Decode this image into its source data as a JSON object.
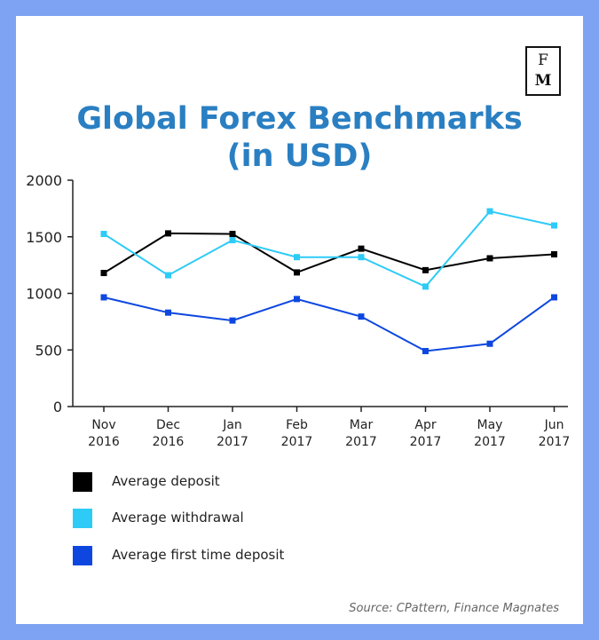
{
  "logo": {
    "line1": "F",
    "line2": "M"
  },
  "source": "Source: CPattern, Finance Magnates",
  "chart_data": {
    "type": "line",
    "title": "Global Forex Benchmarks",
    "subtitle": "(in USD)",
    "categories": [
      [
        "Nov",
        "2016"
      ],
      [
        "Dec",
        "2016"
      ],
      [
        "Jan",
        "2017"
      ],
      [
        "Feb",
        "2017"
      ],
      [
        "Mar",
        "2017"
      ],
      [
        "Apr",
        "2017"
      ],
      [
        "May",
        "2017"
      ],
      [
        "Jun",
        "2017"
      ]
    ],
    "ylim": [
      0,
      2000
    ],
    "yticks": [
      0,
      500,
      1000,
      1500,
      2000
    ],
    "grid": false,
    "legend_position": "bottom-left",
    "series": [
      {
        "name": "Average deposit",
        "color": "#000000",
        "values": [
          1180,
          1530,
          1525,
          1185,
          1395,
          1205,
          1310,
          1345
        ]
      },
      {
        "name": "Average withdrawal",
        "color": "#2ecbf7",
        "values": [
          1525,
          1160,
          1470,
          1320,
          1320,
          1060,
          1725,
          1600
        ]
      },
      {
        "name": "Average first time deposit",
        "color": "#0d47e0",
        "values": [
          965,
          830,
          760,
          950,
          795,
          490,
          555,
          965
        ]
      }
    ]
  }
}
